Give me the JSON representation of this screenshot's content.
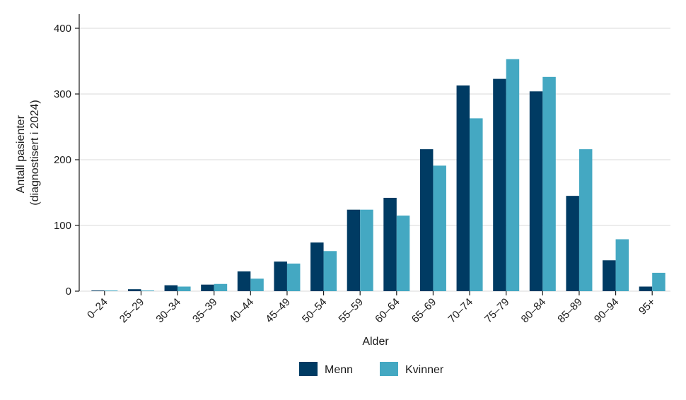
{
  "chart_data": {
    "type": "bar",
    "title": "",
    "xlabel": "Alder",
    "ylabel": [
      "Antall pasienter",
      "(diagnostisert i 2024)"
    ],
    "categories": [
      "0–24",
      "25–29",
      "30–34",
      "35–39",
      "40–44",
      "45–49",
      "50–54",
      "55–59",
      "60–64",
      "65–69",
      "70–74",
      "75–79",
      "80–84",
      "85–89",
      "90–94",
      "95+"
    ],
    "series": [
      {
        "name": "Menn",
        "color": "#003B63",
        "values": [
          1,
          3,
          9,
          10,
          30,
          45,
          74,
          124,
          142,
          216,
          313,
          323,
          304,
          145,
          47,
          7
        ]
      },
      {
        "name": "Kvinner",
        "color": "#44A8C2",
        "values": [
          1,
          1,
          7,
          11,
          19,
          42,
          61,
          124,
          115,
          191,
          263,
          353,
          326,
          216,
          79,
          28
        ]
      }
    ],
    "ylim": [
      0,
      400
    ],
    "yticks": [
      0,
      100,
      200,
      300,
      400
    ],
    "grid": true,
    "legend": "bottom-center"
  }
}
